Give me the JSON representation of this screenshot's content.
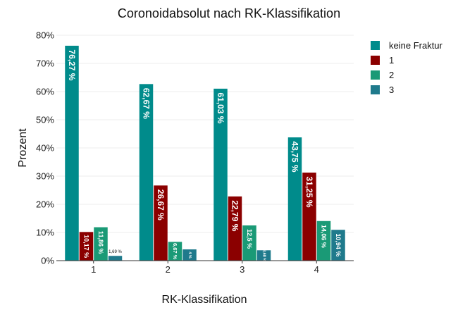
{
  "chart_data": {
    "type": "bar",
    "title": "Coronoidabsolut nach RK-Klassifikation",
    "xlabel": "RK-Klassifikation",
    "ylabel": "Prozent",
    "categories": [
      "1",
      "2",
      "3",
      "4"
    ],
    "ylim": [
      0,
      80
    ],
    "y_ticks": [
      "0%",
      "10%",
      "20%",
      "30%",
      "40%",
      "50%",
      "60%",
      "70%",
      "80%"
    ],
    "grid": true,
    "legend_position": "right",
    "series": [
      {
        "name": "keine Fraktur",
        "color": "#008B8B",
        "values": [
          76.27,
          62.67,
          61.03,
          43.75
        ],
        "labels": [
          "76,27 %",
          "62,67 %",
          "61,03 %",
          "43,75 %"
        ]
      },
      {
        "name": "1",
        "color": "#8B0000",
        "values": [
          10.17,
          26.67,
          22.79,
          31.25
        ],
        "labels": [
          "10,17 %",
          "26,67 %",
          "22,79 %",
          "31,25 %"
        ]
      },
      {
        "name": "2",
        "color": "#1A9A76",
        "values": [
          11.86,
          6.67,
          12.5,
          14.06
        ],
        "labels": [
          "11,86 %",
          "6,67 %",
          "12,5 %",
          "14,06 %"
        ]
      },
      {
        "name": "3",
        "color": "#1F7A8C",
        "values": [
          1.69,
          4,
          3.68,
          10.94
        ],
        "labels": [
          "1,69 %",
          "4 %",
          "3,68 %",
          "10,94 %"
        ]
      }
    ]
  }
}
